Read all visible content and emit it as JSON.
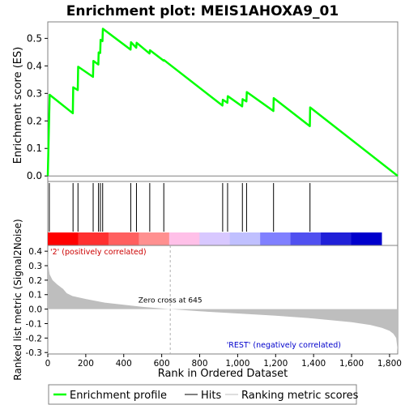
{
  "chart_data": {
    "type": "line",
    "title": "Enrichment plot: MEIS1AHOXA9_01",
    "top_panel": {
      "ylabel": "Enrichment score (ES)",
      "ylim": [
        -0.02,
        0.56
      ],
      "yticks": [
        0.0,
        0.1,
        0.2,
        0.3,
        0.4,
        0.5
      ],
      "ytick_labels": [
        "0.0",
        "0.1",
        "0.2",
        "0.3",
        "0.4",
        "0.5"
      ],
      "series": [
        {
          "name": "Enrichment profile",
          "color": "#00ff00",
          "x": [
            0,
            10,
            132,
            134,
            158,
            160,
            238,
            240,
            266,
            268,
            276,
            278,
            288,
            290,
            436,
            438,
            466,
            468,
            536,
            538,
            610,
            612,
            920,
            922,
            946,
            948,
            1024,
            1026,
            1046,
            1048,
            1188,
            1190,
            1380,
            1382,
            1843
          ],
          "y": [
            0.0,
            0.295,
            0.228,
            0.322,
            0.312,
            0.397,
            0.36,
            0.418,
            0.405,
            0.449,
            0.447,
            0.495,
            0.49,
            0.535,
            0.459,
            0.486,
            0.466,
            0.484,
            0.445,
            0.457,
            0.419,
            0.421,
            0.256,
            0.277,
            0.266,
            0.29,
            0.253,
            0.279,
            0.271,
            0.305,
            0.236,
            0.283,
            0.181,
            0.249,
            0.0
          ]
        }
      ]
    },
    "hits": [
      8,
      133,
      159,
      239,
      267,
      277,
      289,
      437,
      467,
      537,
      611,
      921,
      947,
      1025,
      1047,
      1189,
      1381
    ],
    "middle_bar": {
      "colors": [
        "#ff0000",
        "#ff3030",
        "#ff6060",
        "#ff9090",
        "#ffc0e8",
        "#d8c8ff",
        "#c0c0ff",
        "#8080ff",
        "#5050f0",
        "#2020d8",
        "#0000cc"
      ]
    },
    "bottom_panel": {
      "ylabel": "Ranked list metric (Signal2Noise)",
      "xlabel": "Rank in Ordered Dataset",
      "ylim": [
        -0.31,
        0.44
      ],
      "yticks": [
        -0.3,
        -0.2,
        -0.1,
        0.0,
        0.1,
        0.2,
        0.3,
        0.4
      ],
      "ytick_labels": [
        "-0.3",
        "-0.2",
        "-0.1",
        "0.0",
        "0.1",
        "0.2",
        "0.3",
        "0.4"
      ],
      "xlim": [
        0,
        1843
      ],
      "xticks": [
        0,
        200,
        400,
        600,
        800,
        1000,
        1200,
        1400,
        1600,
        1800
      ],
      "xtick_labels": [
        "0",
        "200",
        "400",
        "600",
        "800",
        "1,000",
        "1,200",
        "1,400",
        "1,600",
        "1,800"
      ],
      "metric_x": [
        0,
        3,
        10,
        25,
        50,
        80,
        100,
        130,
        200,
        300,
        400,
        500,
        645,
        800,
        1000,
        1200,
        1400,
        1600,
        1700,
        1760,
        1800,
        1820,
        1835,
        1843
      ],
      "metric_y": [
        0.44,
        0.3,
        0.24,
        0.2,
        0.17,
        0.14,
        0.11,
        0.09,
        0.07,
        0.045,
        0.03,
        0.015,
        0.0,
        -0.015,
        -0.03,
        -0.045,
        -0.065,
        -0.09,
        -0.11,
        -0.13,
        -0.15,
        -0.17,
        -0.2,
        -0.29
      ],
      "zero_cross_label": "Zero cross at 645",
      "zero_cross_x": 645,
      "pos_label": "'2' (positively correlated)",
      "neg_label": "'REST' (negatively correlated)"
    },
    "legend": {
      "items": [
        {
          "label": "Enrichment profile",
          "color": "#00ff00"
        },
        {
          "label": "Hits",
          "color": "#000000"
        },
        {
          "label": "Ranking metric scores",
          "color": "#bebebe"
        }
      ]
    }
  }
}
